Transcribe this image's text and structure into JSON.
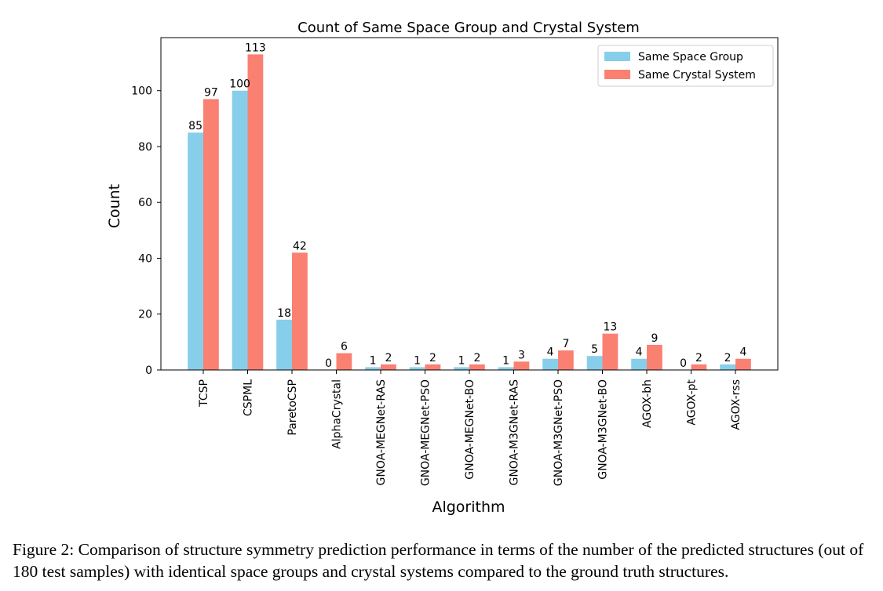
{
  "chart_data": {
    "type": "bar",
    "title": "Count of Same Space Group and Crystal System",
    "xlabel": "Algorithm",
    "ylabel": "Count",
    "ylim": [
      0,
      119
    ],
    "yticks": [
      0,
      20,
      40,
      60,
      80,
      100
    ],
    "categories": [
      "TCSP",
      "CSPML",
      "ParetoCSP",
      "AlphaCrystal",
      "GNOA-MEGNet-RAS",
      "GNOA-MEGNet-PSO",
      "GNOA-MEGNet-BO",
      "GNOA-M3GNet-RAS",
      "GNOA-M3GNet-PSO",
      "GNOA-M3GNet-BO",
      "AGOX-bh",
      "AGOX-pt",
      "AGOX-rss"
    ],
    "series": [
      {
        "name": "Same Space Group",
        "color": "#87CEEB",
        "values": [
          85,
          100,
          18,
          0,
          1,
          1,
          1,
          1,
          4,
          5,
          4,
          0,
          2
        ]
      },
      {
        "name": "Same Crystal System",
        "color": "#FA8072",
        "values": [
          97,
          113,
          42,
          6,
          2,
          2,
          2,
          3,
          7,
          13,
          9,
          2,
          4
        ]
      }
    ],
    "legend_position": "top-right",
    "grid": false
  },
  "caption": "Figure 2: Comparison of structure symmetry prediction performance in terms of the number of the predicted structures (out of 180 test samples) with identical space groups and crystal systems compared to the ground truth structures."
}
